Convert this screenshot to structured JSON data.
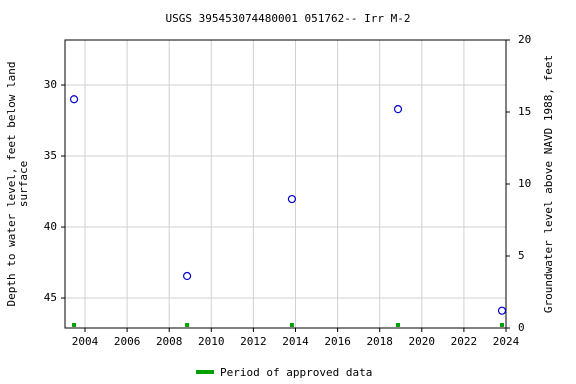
{
  "chart_data": {
    "type": "scatter",
    "title": "USGS 395453074480001 051762-- Irr M-2",
    "ylabel": [
      "Depth to water level, feet below land",
      "surface"
    ],
    "y2label": "Groundwater level above NAVD 1988, feet",
    "series": [
      {
        "name": "Depth to water level",
        "color": "#0000cc",
        "x": [
          2003.48,
          2008.85,
          2013.83,
          2018.87,
          2023.81
        ],
        "values": [
          31.0,
          43.45,
          38.03,
          31.7,
          45.89
        ]
      },
      {
        "name": "Period of approved data",
        "color": "#00a000",
        "x": [
          2003.48,
          2008.85,
          2013.83,
          2018.87,
          2023.81
        ]
      }
    ],
    "xlim": [
      2003.05,
      2024.0
    ],
    "xticks": [
      2004,
      2006,
      2008,
      2010,
      2012,
      2014,
      2016,
      2018,
      2020,
      2022,
      2024
    ],
    "ylim": [
      26.83,
      47.11
    ],
    "yticks": [
      30,
      35,
      40,
      45
    ],
    "y2lim": [
      0,
      20
    ],
    "y2ticks": [
      0,
      5,
      10,
      15,
      20
    ],
    "grid": true
  }
}
